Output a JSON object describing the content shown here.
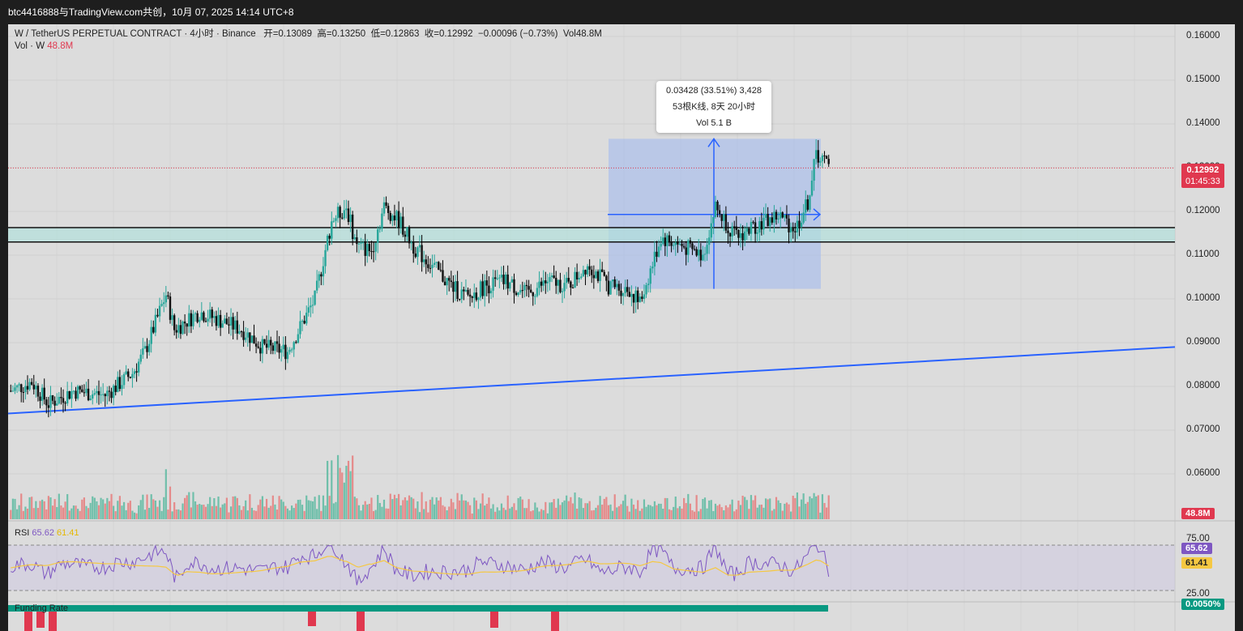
{
  "window": {
    "title": "btc4416888与TradingView.com共创，10月 07, 2025 14:14 UTC+8"
  },
  "legend": {
    "symbol": "W / TetherUS PERPETUAL CONTRACT · 4小时 · Binance",
    "open_label": "开",
    "open": "=0.13089",
    "high_label": "高",
    "high": "=0.13250",
    "low_label": "低",
    "low": "=0.12863",
    "close_label": "收",
    "close": "=0.12992",
    "change": "−0.00096 (−0.73%)",
    "vol": "Vol48.8M"
  },
  "volume_legend": {
    "label": "Vol · W",
    "value": "48.8M"
  },
  "price_axis": {
    "ticks": [
      "0.16000",
      "0.15000",
      "0.14000",
      "0.13000",
      "0.12000",
      "0.11000",
      "0.10000",
      "0.09000",
      "0.08000",
      "0.07000",
      "0.06000"
    ]
  },
  "last_price": {
    "value": "0.12992",
    "countdown": "01:45:33",
    "color": "#e0384f"
  },
  "volume_badge": "48.8M",
  "measure_tooltip": {
    "line1": "0.03428 (33.51%) 3,428",
    "line2": "53根K线, 8天 20小时",
    "line3": "Vol 5.1 B"
  },
  "rsi": {
    "label": "RSI",
    "value": "65.62",
    "ma": "61.41",
    "upper": "75.00",
    "lower": "25.00",
    "line_color": "#7e57c2",
    "ma_color": "#f5c842"
  },
  "funding": {
    "label": "Funding Rate",
    "value": "0.0050%",
    "color": "#089981"
  },
  "colors": {
    "up": "#26a69a",
    "down": "#000000",
    "vol_up": "#6fbfaa",
    "vol_down": "#e58a8a",
    "trendline": "#2962ff",
    "zone": "#b2dfdb",
    "measure": "#9fb8f0"
  },
  "chart_data": {
    "type": "candlestick",
    "timeframe": "4小时",
    "ylim": [
      0.058,
      0.165
    ],
    "keyframes": [
      [
        0,
        0.079
      ],
      [
        10,
        0.081
      ],
      [
        18,
        0.076
      ],
      [
        30,
        0.079
      ],
      [
        45,
        0.078
      ],
      [
        58,
        0.083
      ],
      [
        64,
        0.088
      ],
      [
        74,
        0.101
      ],
      [
        78,
        0.093
      ],
      [
        90,
        0.097
      ],
      [
        100,
        0.095
      ],
      [
        110,
        0.093
      ],
      [
        120,
        0.089
      ],
      [
        132,
        0.088
      ],
      [
        145,
        0.1
      ],
      [
        153,
        0.118
      ],
      [
        160,
        0.121
      ],
      [
        165,
        0.112
      ],
      [
        172,
        0.111
      ],
      [
        178,
        0.121
      ],
      [
        185,
        0.118
      ],
      [
        192,
        0.112
      ],
      [
        200,
        0.108
      ],
      [
        210,
        0.103
      ],
      [
        218,
        0.1
      ],
      [
        226,
        0.103
      ],
      [
        236,
        0.104
      ],
      [
        246,
        0.101
      ],
      [
        256,
        0.104
      ],
      [
        266,
        0.103
      ],
      [
        275,
        0.108
      ],
      [
        285,
        0.103
      ],
      [
        295,
        0.102
      ],
      [
        300,
        0.099
      ],
      [
        310,
        0.114
      ],
      [
        320,
        0.112
      ],
      [
        330,
        0.11
      ],
      [
        336,
        0.121
      ],
      [
        346,
        0.114
      ],
      [
        356,
        0.117
      ],
      [
        366,
        0.119
      ],
      [
        374,
        0.116
      ],
      [
        380,
        0.122
      ],
      [
        384,
        0.133
      ],
      [
        387,
        0.132
      ],
      [
        390,
        0.13
      ]
    ],
    "measure": {
      "price_change": 0.03428,
      "percent": "33.51%",
      "bars": 53,
      "volume": "5.1 B",
      "from": 0.1023,
      "to": 0.1366
    },
    "zone": [
      0.113,
      0.1163
    ],
    "trendline": {
      "from": 0.0738,
      "to": 0.089
    },
    "rsi_range": [
      25,
      75
    ]
  }
}
